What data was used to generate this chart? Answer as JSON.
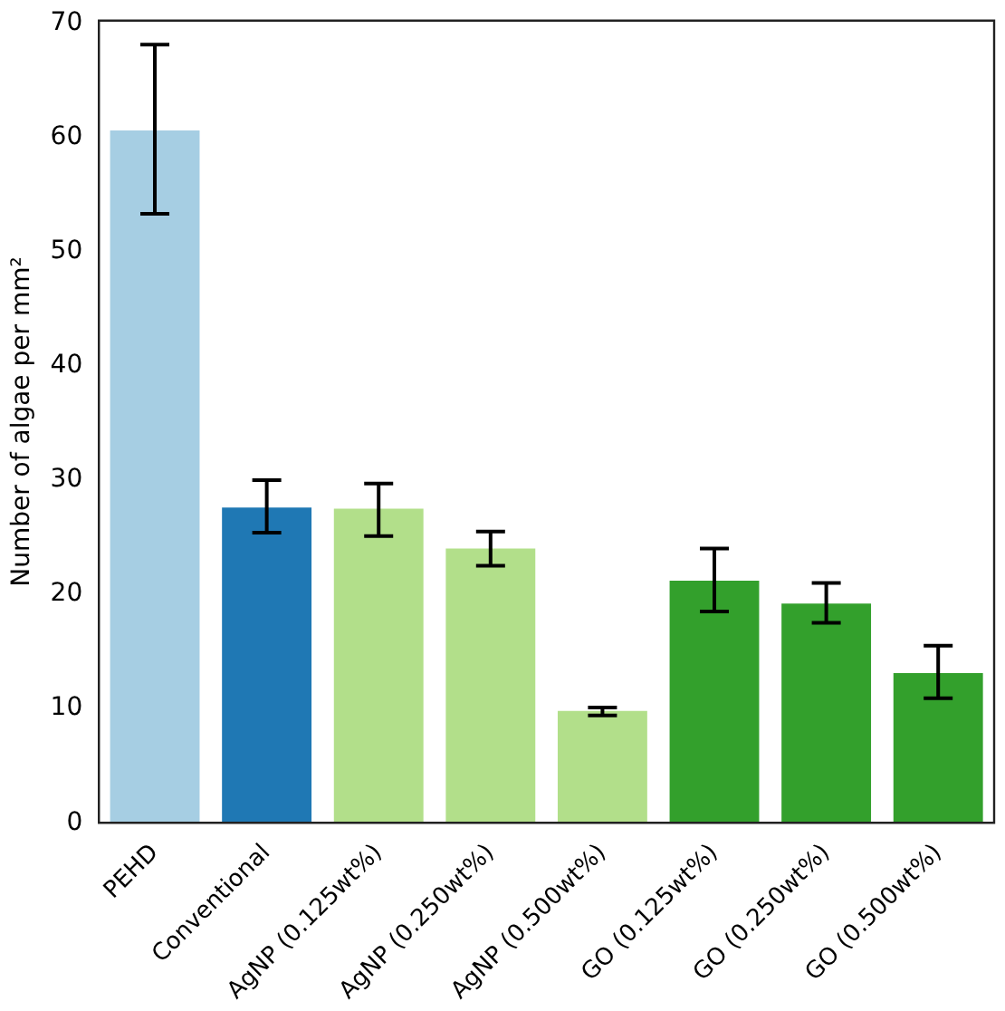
{
  "chart_data": {
    "type": "bar",
    "ylabel": "Number of algae per mm²",
    "categories": [
      "PEHD",
      "Conventional",
      "AgNP (0.125wt%)",
      "AgNP (0.250wt%)",
      "AgNP (0.500wt%)",
      "GO (0.125wt%)",
      "GO (0.250wt%)",
      "GO (0.500wt%)"
    ],
    "values": [
      60.6,
      27.6,
      27.5,
      24.0,
      9.8,
      21.2,
      19.2,
      13.1
    ],
    "errors": [
      [
        53.3,
        68.1
      ],
      [
        25.4,
        30.0
      ],
      [
        25.1,
        29.7
      ],
      [
        22.5,
        25.5
      ],
      [
        9.4,
        10.1
      ],
      [
        18.5,
        24.0
      ],
      [
        17.5,
        21.0
      ],
      [
        10.9,
        15.5
      ]
    ],
    "colors": [
      "#a6cee3",
      "#1f78b4",
      "#b2df8a",
      "#b2df8a",
      "#b2df8a",
      "#33a02c",
      "#33a02c",
      "#33a02c"
    ],
    "ylim": [
      0,
      70.2
    ],
    "yticks": [
      0,
      10,
      20,
      30,
      40,
      50,
      60,
      70
    ],
    "grid": false,
    "legend": false
  }
}
